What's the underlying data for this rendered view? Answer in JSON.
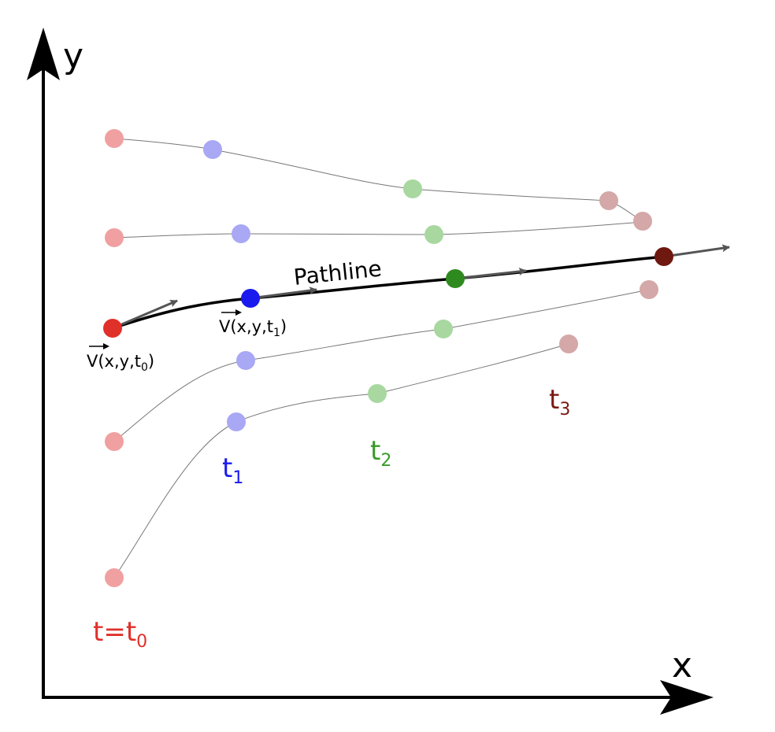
{
  "axes": {
    "x_label": "x",
    "y_label": "y"
  },
  "pathline_label": "Pathline",
  "time_labels": {
    "t0": {
      "main": "t=t",
      "sub": "0",
      "color": "#e0302a"
    },
    "t1": {
      "main": "t",
      "sub": "1",
      "color": "#1a1aee"
    },
    "t2": {
      "main": "t",
      "sub": "2",
      "color": "#3a9a2a"
    },
    "t3": {
      "main": "t",
      "sub": "3",
      "color": "#7a1a12"
    }
  },
  "velocity_labels": {
    "v0": {
      "pre": "V(x,y,t",
      "sub": "0",
      "post": ")"
    },
    "v1": {
      "pre": "V(x,y,t",
      "sub": "1",
      "post": ")"
    }
  },
  "colors": {
    "t0": "#e0302a",
    "t1": "#1a1aee",
    "t2": "#2e8a1e",
    "t3": "#6e1810",
    "faded_t0": "#f0a0a0",
    "faded_t1": "#a8a8f4",
    "faded_t2": "#a8d8a0",
    "faded_t3": "#d4a8a8",
    "arrow": "#555555",
    "axis": "#000000"
  }
}
